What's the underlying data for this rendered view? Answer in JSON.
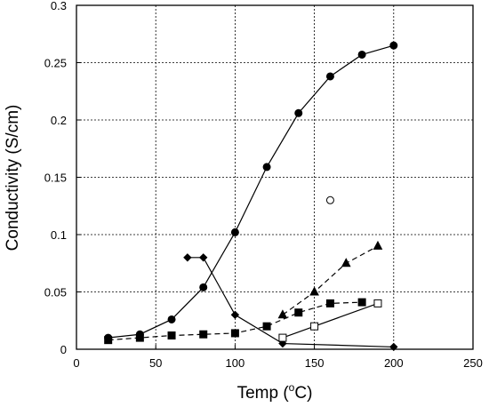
{
  "chart_data": {
    "type": "scatter",
    "title": "",
    "xlabel": {
      "prefix": "Temp (",
      "sup": "o",
      "suffix": "C)"
    },
    "ylabel": "Conductivity (S/cm)",
    "xlim": [
      0,
      250
    ],
    "ylim": [
      0,
      0.3
    ],
    "xticks": [
      0,
      50,
      100,
      150,
      200,
      250
    ],
    "xtick_labels": [
      "0",
      "50",
      "100",
      "150",
      "200",
      "250"
    ],
    "yticks": [
      0,
      0.05,
      0.1,
      0.15,
      0.2,
      0.25,
      0.3
    ],
    "ytick_labels": [
      "0",
      "0.05",
      "0.1",
      "0.15",
      "0.2",
      "0.25",
      "0.3"
    ],
    "grid": true,
    "series": [
      {
        "marker": "circle-filled",
        "line": "solid",
        "color": "#000000",
        "x": [
          20,
          40,
          60,
          80,
          100,
          120,
          140,
          160,
          180,
          200
        ],
        "y": [
          0.01,
          0.013,
          0.026,
          0.054,
          0.102,
          0.159,
          0.206,
          0.238,
          0.257,
          0.265
        ]
      },
      {
        "marker": "diamond-filled",
        "line": "solid",
        "color": "#000000",
        "x": [
          70,
          80,
          100,
          130,
          200
        ],
        "y": [
          0.08,
          0.08,
          0.03,
          0.005,
          0.002
        ]
      },
      {
        "marker": "square-filled",
        "line": "dashed",
        "color": "#000000",
        "x": [
          20,
          40,
          60,
          80,
          100,
          120,
          140,
          160,
          180
        ],
        "y": [
          0.008,
          0.01,
          0.012,
          0.013,
          0.014,
          0.02,
          0.032,
          0.04,
          0.041
        ]
      },
      {
        "marker": "triangle-filled",
        "line": "dashed",
        "color": "#000000",
        "x": [
          130,
          150,
          170,
          190
        ],
        "y": [
          0.03,
          0.05,
          0.075,
          0.09
        ]
      },
      {
        "marker": "square-open",
        "line": "solid",
        "color": "#000000",
        "x": [
          130,
          150,
          190
        ],
        "y": [
          0.01,
          0.02,
          0.04
        ]
      },
      {
        "marker": "circle-open",
        "line": "none",
        "color": "#000000",
        "x": [
          160
        ],
        "y": [
          0.13
        ]
      }
    ]
  }
}
